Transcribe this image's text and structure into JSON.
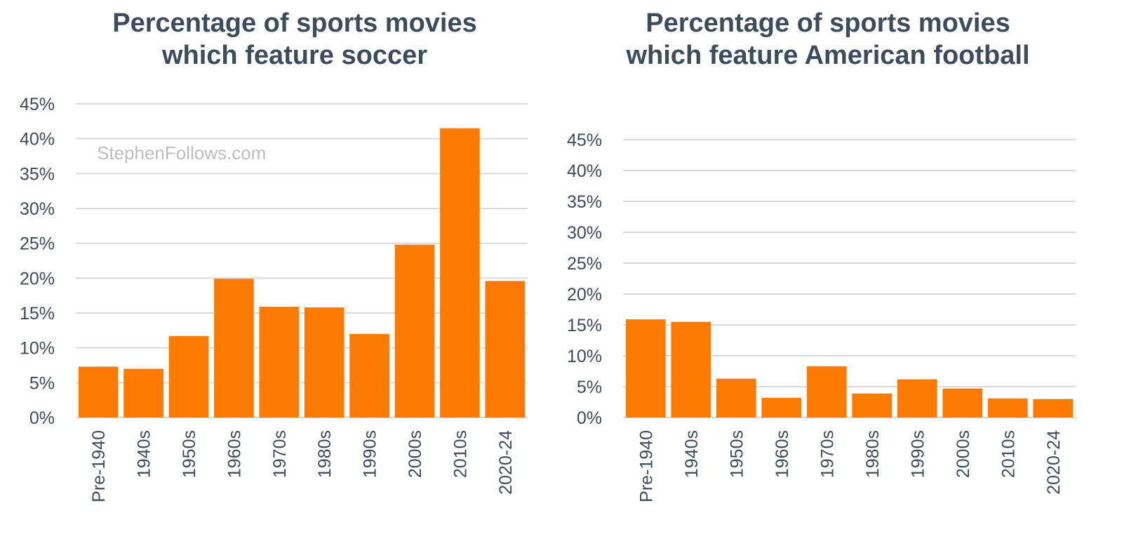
{
  "chart_data": [
    {
      "type": "bar",
      "title": "Percentage of sports movies which feature soccer",
      "categories": [
        "Pre-1940",
        "1940s",
        "1950s",
        "1960s",
        "1970s",
        "1980s",
        "1990s",
        "2000s",
        "2010s",
        "2020-24"
      ],
      "values": [
        7.3,
        7.0,
        11.7,
        19.9,
        15.9,
        15.8,
        12.0,
        24.8,
        41.5,
        19.6
      ],
      "yticks": [
        "0%",
        "5%",
        "10%",
        "15%",
        "20%",
        "25%",
        "30%",
        "35%",
        "40%",
        "45%"
      ],
      "ylim": [
        0,
        45
      ],
      "xlabel": "",
      "ylabel": "",
      "grid": true,
      "color": "#fd7a03"
    },
    {
      "type": "bar",
      "title": "Percentage of sports movies which feature American football",
      "categories": [
        "Pre-1940",
        "1940s",
        "1950s",
        "1960s",
        "1970s",
        "1980s",
        "1990s",
        "2000s",
        "2010s",
        "2020-24"
      ],
      "values": [
        15.9,
        15.5,
        6.3,
        3.2,
        8.3,
        3.9,
        6.2,
        4.7,
        3.1,
        3.0
      ],
      "yticks": [
        "0%",
        "5%",
        "10%",
        "15%",
        "20%",
        "25%",
        "30%",
        "35%",
        "40%",
        "45%"
      ],
      "ylim": [
        0,
        45
      ],
      "xlabel": "",
      "ylabel": "",
      "grid": true,
      "color": "#fd7a03"
    }
  ],
  "watermark": "StephenFollows.com"
}
